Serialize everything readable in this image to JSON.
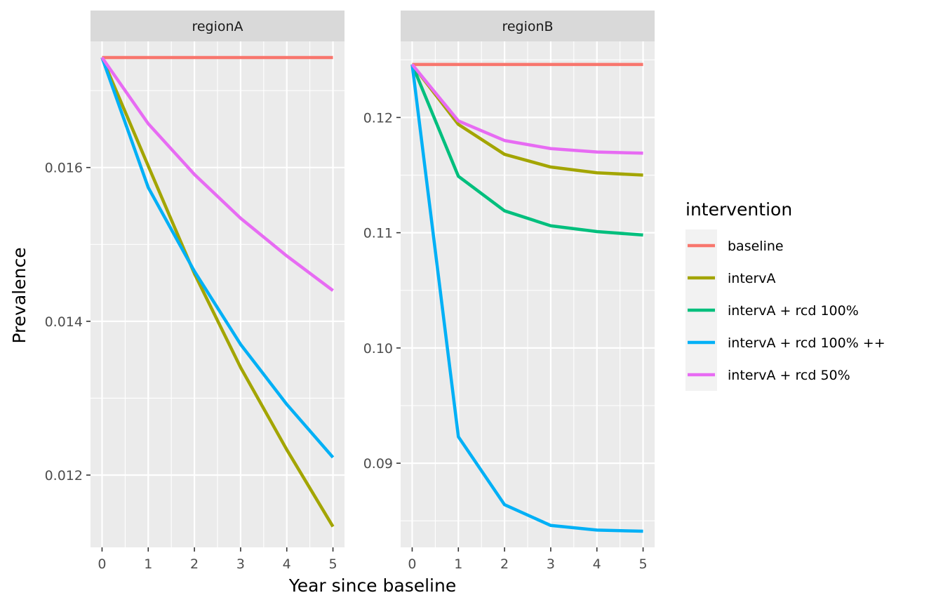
{
  "chart_data": {
    "type": "line",
    "xlabel": "Year since baseline",
    "ylabel": "Prevalence",
    "x": [
      0,
      1,
      2,
      3,
      4,
      5
    ],
    "x_ticks": [
      "0",
      "1",
      "2",
      "3",
      "4",
      "5"
    ],
    "grid": true,
    "legend": {
      "title": "intervention",
      "placement": "right",
      "entries": [
        "baseline",
        "intervA",
        "intervA + rcd 100%",
        "intervA + rcd 100% ++",
        "intervA + rcd 50%"
      ]
    },
    "colors": {
      "baseline": "#F8766D",
      "intervA": "#A3A500",
      "intervA + rcd 100%": "#00BF7D",
      "intervA + rcd 100% ++": "#00B0F6",
      "intervA + rcd 50%": "#E76BF3"
    },
    "panels": [
      {
        "title": "regionA",
        "xlim": [
          -0.25,
          5.25
        ],
        "ylim": [
          0.01106,
          0.01764
        ],
        "y_ticks": [
          0.012,
          0.014,
          0.016
        ],
        "y_tick_labels": [
          "0.012",
          "0.014",
          "0.016"
        ],
        "series": [
          {
            "name": "baseline",
            "values": [
              0.01743,
              0.01743,
              0.01743,
              0.01743,
              0.01743,
              0.01743
            ]
          },
          {
            "name": "intervA",
            "values": [
              0.01743,
              0.01602,
              0.01462,
              0.0134,
              0.01233,
              0.01133
            ]
          },
          {
            "name": "intervA + rcd 100% ++",
            "values": [
              0.01743,
              0.01574,
              0.01465,
              0.0137,
              0.01292,
              0.01223
            ]
          },
          {
            "name": "intervA + rcd 50%",
            "values": [
              0.01743,
              0.01657,
              0.01591,
              0.01534,
              0.01485,
              0.0144
            ]
          }
        ]
      },
      {
        "title": "regionB",
        "xlim": [
          -0.25,
          5.25
        ],
        "ylim": [
          0.0827,
          0.1266
        ],
        "y_ticks": [
          0.09,
          0.1,
          0.11,
          0.12
        ],
        "y_tick_labels": [
          "0.09",
          "0.10",
          "0.11",
          "0.12"
        ],
        "series": [
          {
            "name": "baseline",
            "values": [
              0.1246,
              0.1246,
              0.1246,
              0.1246,
              0.1246,
              0.1246
            ]
          },
          {
            "name": "intervA",
            "values": [
              0.1246,
              0.1194,
              0.1168,
              0.1157,
              0.1152,
              0.115
            ]
          },
          {
            "name": "intervA + rcd 100%",
            "values": [
              0.1246,
              0.1149,
              0.1119,
              0.1106,
              0.1101,
              0.1098
            ]
          },
          {
            "name": "intervA + rcd 100% ++",
            "values": [
              0.1246,
              0.0923,
              0.0864,
              0.0846,
              0.0842,
              0.0841
            ]
          },
          {
            "name": "intervA + rcd 50%",
            "values": [
              0.1246,
              0.1197,
              0.118,
              0.1173,
              0.117,
              0.1169
            ]
          }
        ]
      }
    ]
  }
}
